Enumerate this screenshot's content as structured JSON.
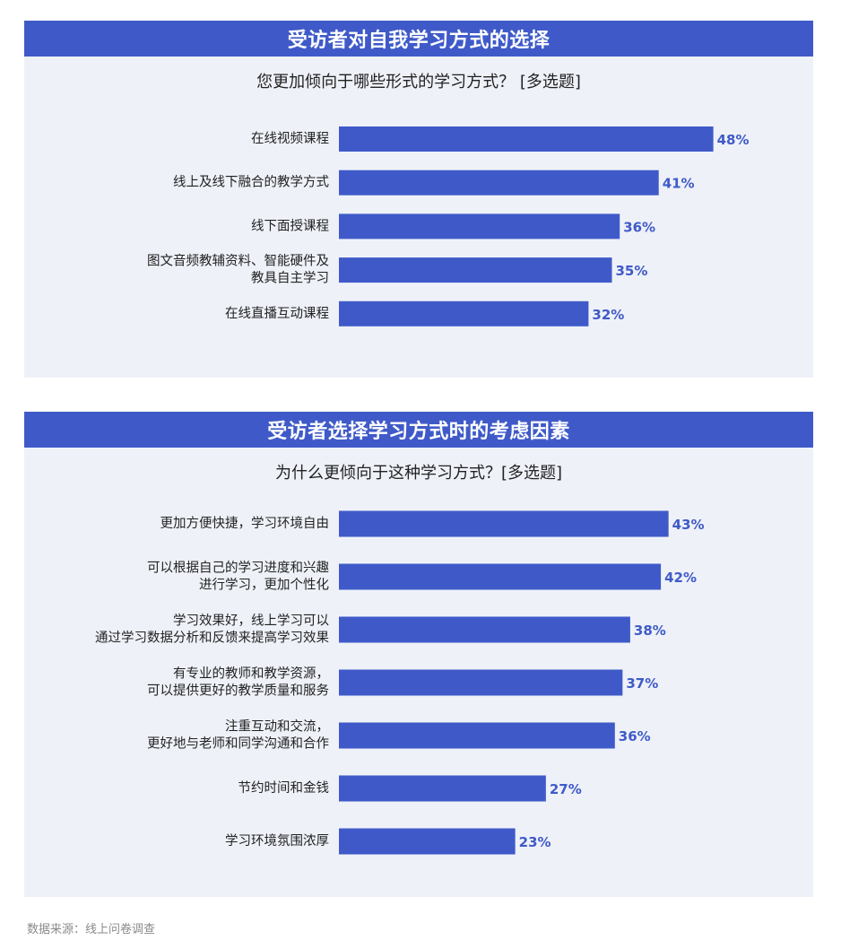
{
  "colors": {
    "accent": "#3f5ac8",
    "panel_bg": "#eef1f8",
    "value_text": "#3f5ac8"
  },
  "panels": [
    {
      "title": "受访者对自我学习方式的选择",
      "subtitle": "您更加倾向于哪些形式的学习方式？ [多选题]"
    },
    {
      "title": "受访者选择学习方式时的考虑因素",
      "subtitle": "为什么更倾向于这种学习方式？[多选题]"
    }
  ],
  "chart_data": [
    {
      "type": "bar",
      "orientation": "horizontal",
      "title": "受访者对自我学习方式的选择",
      "subtitle": "您更加倾向于哪些形式的学习方式？ [多选题]",
      "categories": [
        [
          "在线视频课程"
        ],
        [
          "线上及线下融合的教学方式"
        ],
        [
          "线下面授课程"
        ],
        [
          "图文音频教辅资料、智能硬件及",
          "教具自主学习"
        ],
        [
          "在线直播互动课程"
        ]
      ],
      "values": [
        48,
        41,
        36,
        35,
        32
      ],
      "value_labels": [
        "48%",
        "41%",
        "36%",
        "35%",
        "32%"
      ],
      "unit": "%"
    },
    {
      "type": "bar",
      "orientation": "horizontal",
      "title": "受访者选择学习方式时的考虑因素",
      "subtitle": "为什么更倾向于这种学习方式？[多选题]",
      "categories": [
        [
          "更加方便快捷，学习环境自由"
        ],
        [
          "可以根据自己的学习进度和兴趣",
          "进行学习，更加个性化"
        ],
        [
          "学习效果好，线上学习可以",
          "通过学习数据分析和反馈来提高学习效果"
        ],
        [
          "有专业的教师和教学资源，",
          "可以提供更好的教学质量和服务"
        ],
        [
          "注重互动和交流，",
          "更好地与老师和同学沟通和合作"
        ],
        [
          "节约时间和金钱"
        ],
        [
          "学习环境氛围浓厚"
        ]
      ],
      "values": [
        43,
        42,
        38,
        37,
        36,
        27,
        23
      ],
      "value_labels": [
        "43%",
        "42%",
        "38%",
        "37%",
        "36%",
        "27%",
        "23%"
      ],
      "unit": "%"
    }
  ],
  "footer": {
    "source": "数据来源：线上问卷调查"
  }
}
